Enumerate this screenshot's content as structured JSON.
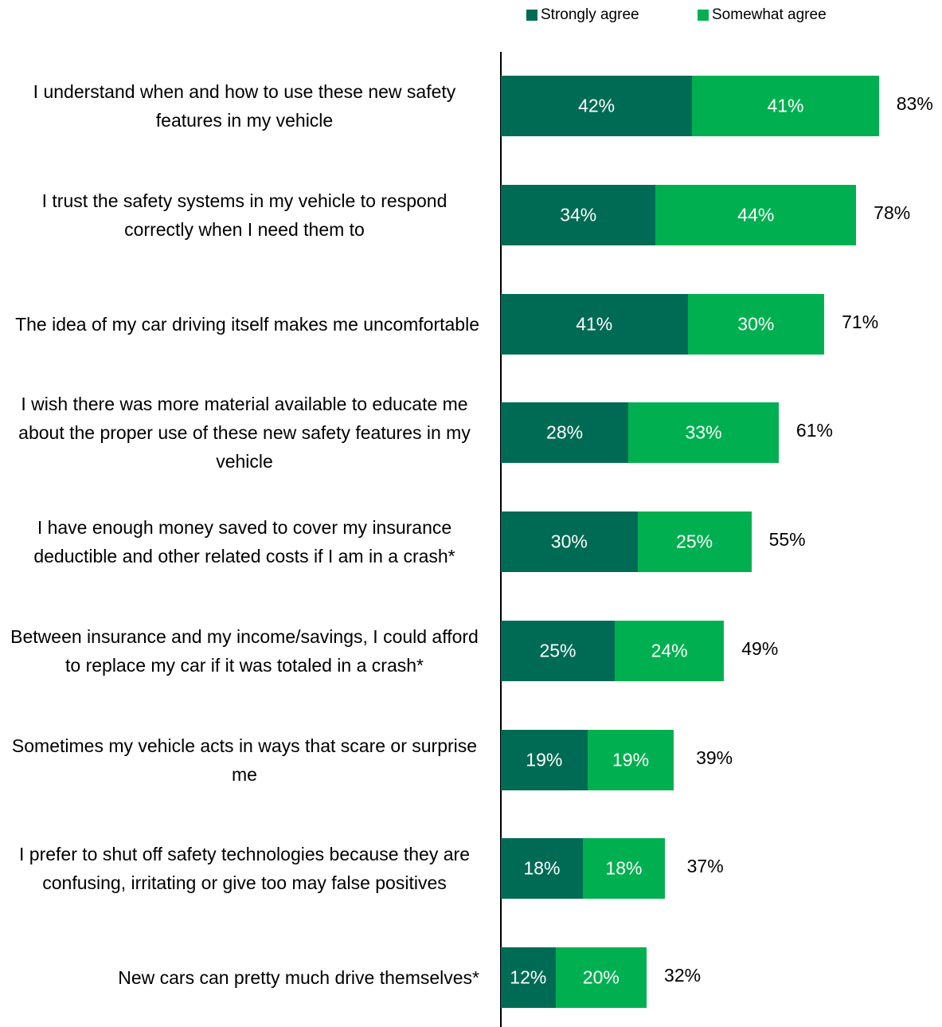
{
  "chart_data": {
    "type": "stacked_barh",
    "categories": [
      "I understand when and how to use these new safety features in my vehicle",
      "I trust the safety systems in my vehicle to respond correctly when I need them to",
      "The idea of my car driving itself makes me uncomfortable",
      "I wish there was more material available to educate me about the proper use of these new safety features in my vehicle",
      "I have enough money saved to cover my insurance deductible and other related costs if I am in a crash*",
      "Between insurance and my income/savings, I could afford to replace my car if it was totaled in a crash*",
      "Sometimes my vehicle acts in ways that scare or surprise me",
      "I prefer to shut off safety technologies because they are confusing, irritating or give too may false positives",
      "New cars can pretty much drive themselves*"
    ],
    "series": [
      {
        "name": "Strongly agree",
        "color": "#006b54",
        "values": [
          42,
          34,
          41,
          28,
          30,
          25,
          19,
          18,
          12
        ],
        "value_labels": [
          "42%",
          "34%",
          "41%",
          "28%",
          "30%",
          "25%",
          "19%",
          "18%",
          "12%"
        ]
      },
      {
        "name": "Somewhat agree",
        "color": "#00b050",
        "values": [
          41,
          44,
          30,
          33,
          25,
          24,
          19,
          18,
          20
        ],
        "value_labels": [
          "41%",
          "44%",
          "30%",
          "33%",
          "25%",
          "24%",
          "19%",
          "18%",
          "20%"
        ]
      }
    ],
    "totals": [
      83,
      78,
      71,
      61,
      55,
      49,
      39,
      37,
      32
    ],
    "total_labels": [
      "83%",
      "78%",
      "71%",
      "61%",
      "55%",
      "49%",
      "39%",
      "37%",
      "32%"
    ],
    "legend": "top-right"
  }
}
